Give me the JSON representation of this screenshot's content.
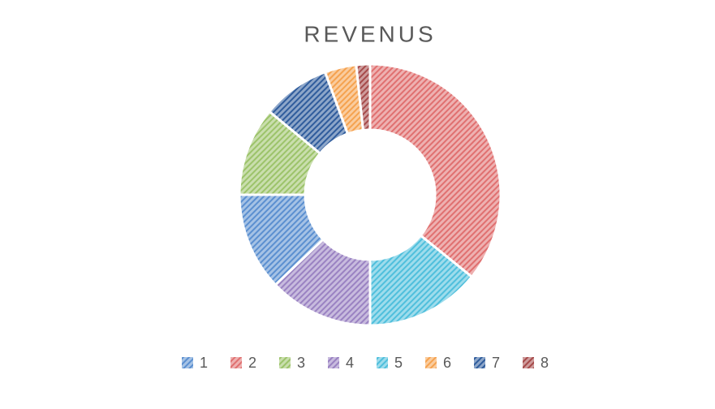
{
  "chart_data": {
    "type": "doughnut",
    "title": "REVENUS",
    "categories": [
      "1",
      "2",
      "3",
      "4",
      "5",
      "6",
      "7",
      "8"
    ],
    "values": [
      12.1,
      35.8,
      11.0,
      12.9,
      14.2,
      3.9,
      8.4,
      1.7
    ],
    "colors": [
      "#5b8fd0",
      "#e07070",
      "#9cc36a",
      "#9a82c2",
      "#4fbfdc",
      "#f5a24f",
      "#2f5c9c",
      "#a64a4a"
    ],
    "sort": "descending",
    "legend": "bottom"
  }
}
